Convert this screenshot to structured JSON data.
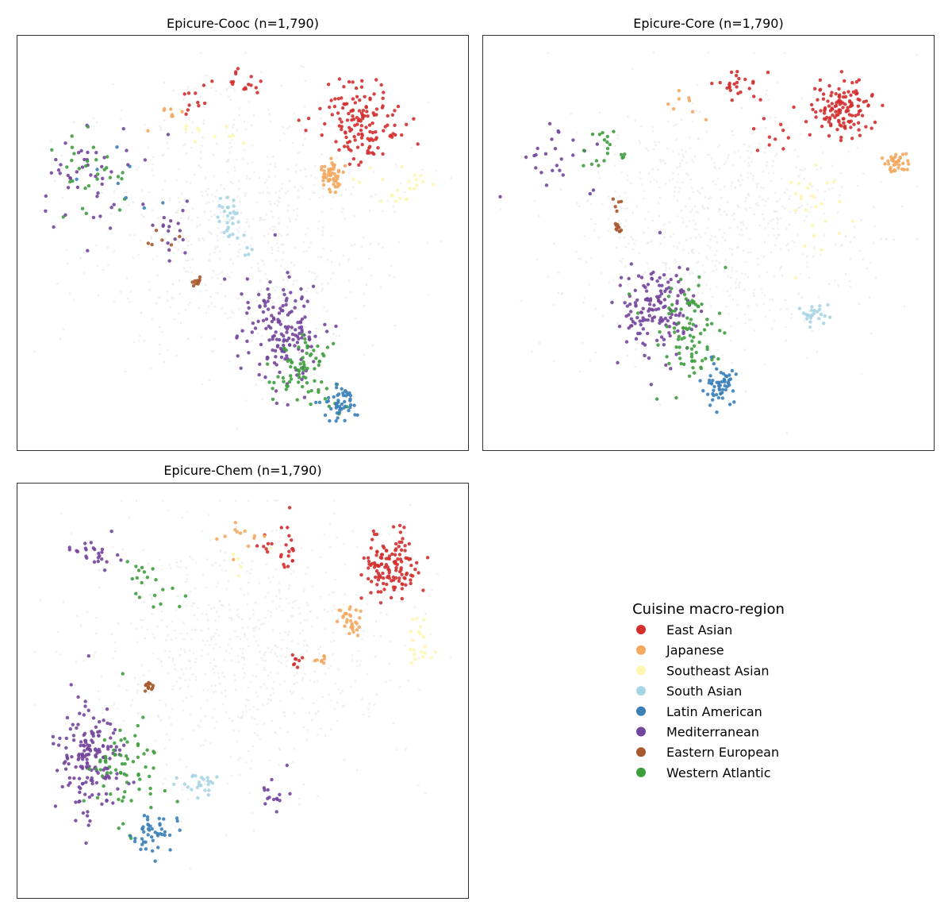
{
  "colors": {
    "East Asian": "#d32f2f",
    "Japanese": "#f4a960",
    "Southeast Asian": "#fdf7b2",
    "South Asian": "#a8d5e6",
    "Latin American": "#3a80b9",
    "Mediterranean": "#74459c",
    "Eastern European": "#a7582e",
    "Western Atlantic": "#3e9e3e",
    "unlabeled": "#e3e3e3"
  },
  "legend": {
    "title": "Cuisine macro-region",
    "items": [
      "East Asian",
      "Japanese",
      "Southeast Asian",
      "South Asian",
      "Latin American",
      "Mediterranean",
      "Eastern European",
      "Western Atlantic"
    ]
  },
  "chart_data": [
    {
      "type": "scatter",
      "title": "Epicure-Cooc  (n=1,790)",
      "xlabel": "",
      "ylabel": "",
      "axes_ticks": false,
      "grid": false,
      "xlim": [
        0,
        100
      ],
      "ylim": [
        0,
        100
      ],
      "note": "2-D embedding projection; each point is one ingredient/recipe item colored by cuisine macro-region; unlabeled items drawn in light gray",
      "clusters": [
        {
          "region": "East Asian",
          "center": [
            78,
            82
          ],
          "spread": [
            7,
            7
          ],
          "count": 140
        },
        {
          "region": "East Asian",
          "center": [
            51,
            92
          ],
          "spread": [
            5,
            2
          ],
          "count": 16
        },
        {
          "region": "East Asian",
          "center": [
            36,
            88
          ],
          "spread": [
            4,
            3
          ],
          "count": 10
        },
        {
          "region": "Japanese",
          "center": [
            71.5,
            68
          ],
          "spread": [
            2,
            3
          ],
          "count": 50
        },
        {
          "region": "Japanese",
          "center": [
            31,
            83
          ],
          "spread": [
            4,
            3
          ],
          "count": 8
        },
        {
          "region": "Southeast Asian",
          "center": [
            88,
            65
          ],
          "spread": [
            6,
            5
          ],
          "count": 22
        },
        {
          "region": "Southeast Asian",
          "center": [
            44,
            79
          ],
          "spread": [
            6,
            4
          ],
          "count": 10
        },
        {
          "region": "South Asian",
          "center": [
            46.5,
            57
          ],
          "spread": [
            1.5,
            4
          ],
          "count": 28
        },
        {
          "region": "South Asian",
          "center": [
            51,
            48
          ],
          "spread": [
            1,
            2
          ],
          "count": 5
        },
        {
          "region": "Mediterranean",
          "center": [
            60,
            26
          ],
          "spread": [
            7,
            10
          ],
          "count": 160
        },
        {
          "region": "Mediterranean",
          "center": [
            13,
            66
          ],
          "spread": [
            8,
            11
          ],
          "count": 45
        },
        {
          "region": "Mediterranean",
          "center": [
            32,
            53
          ],
          "spread": [
            5,
            7
          ],
          "count": 18
        },
        {
          "region": "Western Atlantic",
          "center": [
            64,
            16
          ],
          "spread": [
            6,
            7
          ],
          "count": 75
        },
        {
          "region": "Western Atlantic",
          "center": [
            14,
            70
          ],
          "spread": [
            7,
            9
          ],
          "count": 30
        },
        {
          "region": "Latin American",
          "center": [
            73,
            8
          ],
          "spread": [
            3,
            3
          ],
          "count": 50
        },
        {
          "region": "Latin American",
          "center": [
            18,
            66
          ],
          "spread": [
            7,
            6
          ],
          "count": 8
        },
        {
          "region": "Eastern European",
          "center": [
            39,
            40
          ],
          "spread": [
            1.3,
            0.6
          ],
          "count": 10
        },
        {
          "region": "Eastern European",
          "center": [
            30,
            51
          ],
          "spread": [
            3,
            4
          ],
          "count": 6
        },
        {
          "region": "unlabeled",
          "center": [
            50,
            55
          ],
          "spread": [
            26,
            26
          ],
          "count": 700
        }
      ]
    },
    {
      "type": "scatter",
      "title": "Epicure-Core  (n=1,790)",
      "xlabel": "",
      "ylabel": "",
      "axes_ticks": false,
      "grid": false,
      "xlim": [
        0,
        100
      ],
      "ylim": [
        0,
        100
      ],
      "note": "2-D embedding projection; each point is one ingredient/recipe item colored by cuisine macro-region; unlabeled items drawn in light gray",
      "clusters": [
        {
          "region": "East Asian",
          "center": [
            82,
            85
          ],
          "spread": [
            5,
            5
          ],
          "count": 130
        },
        {
          "region": "East Asian",
          "center": [
            57,
            91
          ],
          "spread": [
            5,
            3
          ],
          "count": 25
        },
        {
          "region": "East Asian",
          "center": [
            66,
            78
          ],
          "spread": [
            4,
            4
          ],
          "count": 10
        },
        {
          "region": "Japanese",
          "center": [
            95,
            71
          ],
          "spread": [
            2,
            2
          ],
          "count": 35
        },
        {
          "region": "Japanese",
          "center": [
            44,
            86
          ],
          "spread": [
            3,
            3
          ],
          "count": 8
        },
        {
          "region": "Southeast Asian",
          "center": [
            76,
            60
          ],
          "spread": [
            6,
            10
          ],
          "count": 25
        },
        {
          "region": "South Asian",
          "center": [
            75,
            31
          ],
          "spread": [
            3,
            2
          ],
          "count": 25
        },
        {
          "region": "Mediterranean",
          "center": [
            37,
            31
          ],
          "spread": [
            6,
            9
          ],
          "count": 150
        },
        {
          "region": "Mediterranean",
          "center": [
            14,
            73
          ],
          "spread": [
            8,
            7
          ],
          "count": 25
        },
        {
          "region": "Western Atlantic",
          "center": [
            45,
            27
          ],
          "spread": [
            6,
            9
          ],
          "count": 90
        },
        {
          "region": "Western Atlantic",
          "center": [
            25,
            74
          ],
          "spread": [
            6,
            6
          ],
          "count": 20
        },
        {
          "region": "Latin American",
          "center": [
            53,
            12
          ],
          "spread": [
            3,
            4
          ],
          "count": 55
        },
        {
          "region": "Eastern European",
          "center": [
            28.5,
            54
          ],
          "spread": [
            0.8,
            1
          ],
          "count": 10
        },
        {
          "region": "Eastern European",
          "center": [
            28,
            60
          ],
          "spread": [
            1,
            3
          ],
          "count": 5
        },
        {
          "region": "unlabeled",
          "center": [
            52,
            55
          ],
          "spread": [
            25,
            24
          ],
          "count": 700
        }
      ]
    },
    {
      "type": "scatter",
      "title": "Epicure-Chem  (n=1,790)",
      "xlabel": "",
      "ylabel": "",
      "axes_ticks": false,
      "grid": false,
      "xlim": [
        0,
        100
      ],
      "ylim": [
        0,
        100
      ],
      "note": "2-D embedding projection; each point is one ingredient/recipe item colored by cuisine macro-region; unlabeled items drawn in light gray",
      "clusters": [
        {
          "region": "East Asian",
          "center": [
            85,
            83
          ],
          "spread": [
            5,
            6
          ],
          "count": 130
        },
        {
          "region": "East Asian",
          "center": [
            59,
            88
          ],
          "spread": [
            5,
            4
          ],
          "count": 25
        },
        {
          "region": "East Asian",
          "center": [
            63,
            58
          ],
          "spread": [
            1,
            2
          ],
          "count": 8
        },
        {
          "region": "Japanese",
          "center": [
            76,
            68
          ],
          "spread": [
            2,
            3
          ],
          "count": 30
        },
        {
          "region": "Japanese",
          "center": [
            49,
            90
          ],
          "spread": [
            3,
            3
          ],
          "count": 12
        },
        {
          "region": "Japanese",
          "center": [
            69,
            58
          ],
          "spread": [
            2,
            1
          ],
          "count": 8
        },
        {
          "region": "Southeast Asian",
          "center": [
            92,
            62
          ],
          "spread": [
            3,
            6
          ],
          "count": 20
        },
        {
          "region": "Southeast Asian",
          "center": [
            49,
            84
          ],
          "spread": [
            3,
            4
          ],
          "count": 5
        },
        {
          "region": "South Asian",
          "center": [
            40,
            26
          ],
          "spread": [
            3,
            2
          ],
          "count": 25
        },
        {
          "region": "Mediterranean",
          "center": [
            13,
            31
          ],
          "spread": [
            5,
            11
          ],
          "count": 170
        },
        {
          "region": "Mediterranean",
          "center": [
            14,
            86
          ],
          "spread": [
            5,
            3
          ],
          "count": 25
        },
        {
          "region": "Mediterranean",
          "center": [
            57,
            23
          ],
          "spread": [
            3,
            4
          ],
          "count": 15
        },
        {
          "region": "Western Atlantic",
          "center": [
            22,
            30
          ],
          "spread": [
            6,
            10
          ],
          "count": 70
        },
        {
          "region": "Western Atlantic",
          "center": [
            27,
            78
          ],
          "spread": [
            6,
            5
          ],
          "count": 20
        },
        {
          "region": "Latin American",
          "center": [
            28,
            12
          ],
          "spread": [
            4,
            4
          ],
          "count": 45
        },
        {
          "region": "Eastern European",
          "center": [
            27.5,
            51
          ],
          "spread": [
            0.8,
            1.2
          ],
          "count": 12
        },
        {
          "region": "unlabeled",
          "center": [
            50,
            60
          ],
          "spread": [
            26,
            24
          ],
          "count": 700
        }
      ]
    }
  ]
}
